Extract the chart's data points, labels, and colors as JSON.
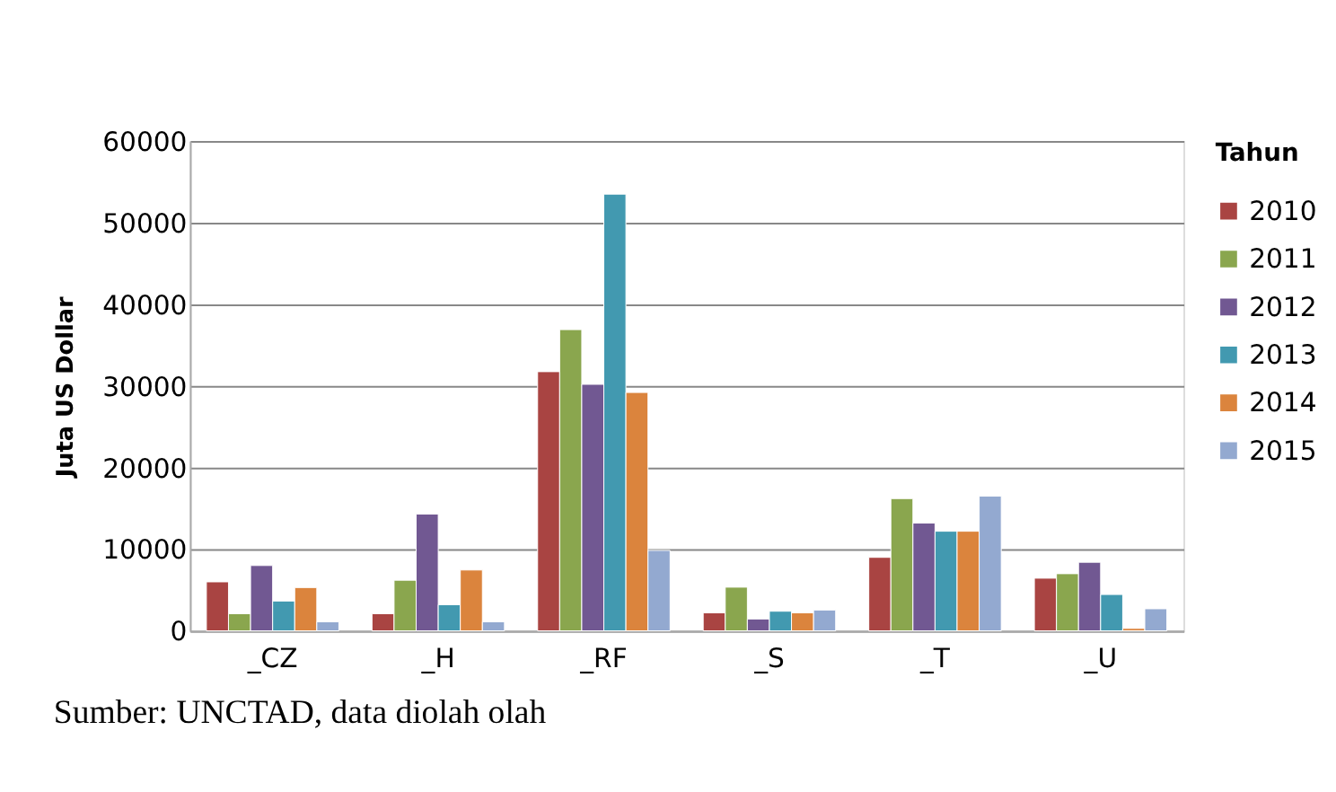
{
  "chart_data": {
    "type": "bar",
    "ylabel": "Juta US Dollar",
    "legend_title": "Tahun",
    "categories": [
      "_CZ",
      "_H",
      "_RF",
      "_S",
      "_T",
      "_U"
    ],
    "series": [
      {
        "name": "2010",
        "color": "#a94442",
        "values": [
          6000,
          2100,
          31750,
          2200,
          9000,
          6450
        ]
      },
      {
        "name": "2011",
        "color": "#8aa64e",
        "values": [
          2100,
          6200,
          36900,
          5350,
          16200,
          7000
        ]
      },
      {
        "name": "2012",
        "color": "#715892",
        "values": [
          8000,
          14300,
          30200,
          1450,
          13200,
          8400
        ]
      },
      {
        "name": "2013",
        "color": "#4299b0",
        "values": [
          3650,
          3200,
          53500,
          2400,
          12200,
          4450
        ]
      },
      {
        "name": "2014",
        "color": "#db843d",
        "values": [
          5300,
          7450,
          29200,
          2200,
          12200,
          300
        ]
      },
      {
        "name": "2015",
        "color": "#93a9d0",
        "values": [
          1100,
          1100,
          9850,
          2550,
          16500,
          2700
        ]
      }
    ],
    "ylim": [
      0,
      60000
    ],
    "yticks": [
      0,
      10000,
      20000,
      30000,
      40000,
      50000,
      60000
    ],
    "grid": "y",
    "legend": "right",
    "annotations": [
      "Sumber: UNCTAD, data diolah olah"
    ]
  }
}
